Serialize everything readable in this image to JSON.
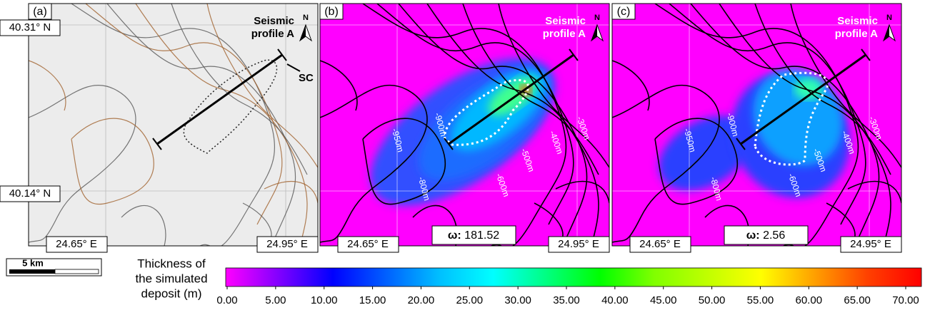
{
  "figure": {
    "lat_labels": [
      "40.31° N",
      "40.14° N"
    ],
    "lon_labels": [
      "24.65° E",
      "24.95° E"
    ],
    "panels": [
      {
        "label": "(a)",
        "north": "N",
        "profile_label": [
          "Seismic",
          "profile A"
        ],
        "feature_label": "SC"
      },
      {
        "label": "(b)",
        "north": "N",
        "profile_label": [
          "Seismic",
          "profile A"
        ],
        "omega_label": "ω:",
        "omega": 181.52,
        "contour_labels": [
          "-950m",
          "-900m",
          "-800m",
          "-600m",
          "-500m",
          "-400m",
          "-300m"
        ]
      },
      {
        "label": "(c)",
        "north": "N",
        "profile_label": [
          "Seismic",
          "profile A"
        ],
        "omega_label": "ω:",
        "omega": 2.56,
        "contour_labels": [
          "-950m",
          "-900m",
          "-800m",
          "-600m",
          "-500m",
          "-400m",
          "-300m"
        ]
      }
    ],
    "scale_bar": {
      "label": "5 km"
    },
    "colorbar": {
      "title": [
        "Thickness of",
        "the simulated",
        "deposit (m)"
      ],
      "lim": [
        0,
        70
      ],
      "colors": [
        "#ff00ff",
        "#8000ff",
        "#0000ff",
        "#0060ff",
        "#00c0ff",
        "#00ffff",
        "#00ff80",
        "#00ff00",
        "#80ff00",
        "#c0ff00",
        "#ffff00",
        "#ffa000",
        "#ff4000",
        "#ff0000"
      ],
      "ticks": [
        {
          "value": 0,
          "label": "0.00"
        },
        {
          "value": 5,
          "label": "5.00"
        },
        {
          "value": 10,
          "label": "10.00"
        },
        {
          "value": 15,
          "label": "15.00"
        },
        {
          "value": 20,
          "label": "20.00"
        },
        {
          "value": 25,
          "label": "25.00"
        },
        {
          "value": 30,
          "label": "30.00"
        },
        {
          "value": 35,
          "label": "35.00"
        },
        {
          "value": 40,
          "label": "40.00"
        },
        {
          "value": 45,
          "label": "45.00"
        },
        {
          "value": 50,
          "label": "50.00"
        },
        {
          "value": 55,
          "label": "55.00"
        },
        {
          "value": 60,
          "label": "60.00"
        },
        {
          "value": 65,
          "label": "65.00"
        },
        {
          "value": 70,
          "label": "70.00"
        }
      ]
    }
  }
}
